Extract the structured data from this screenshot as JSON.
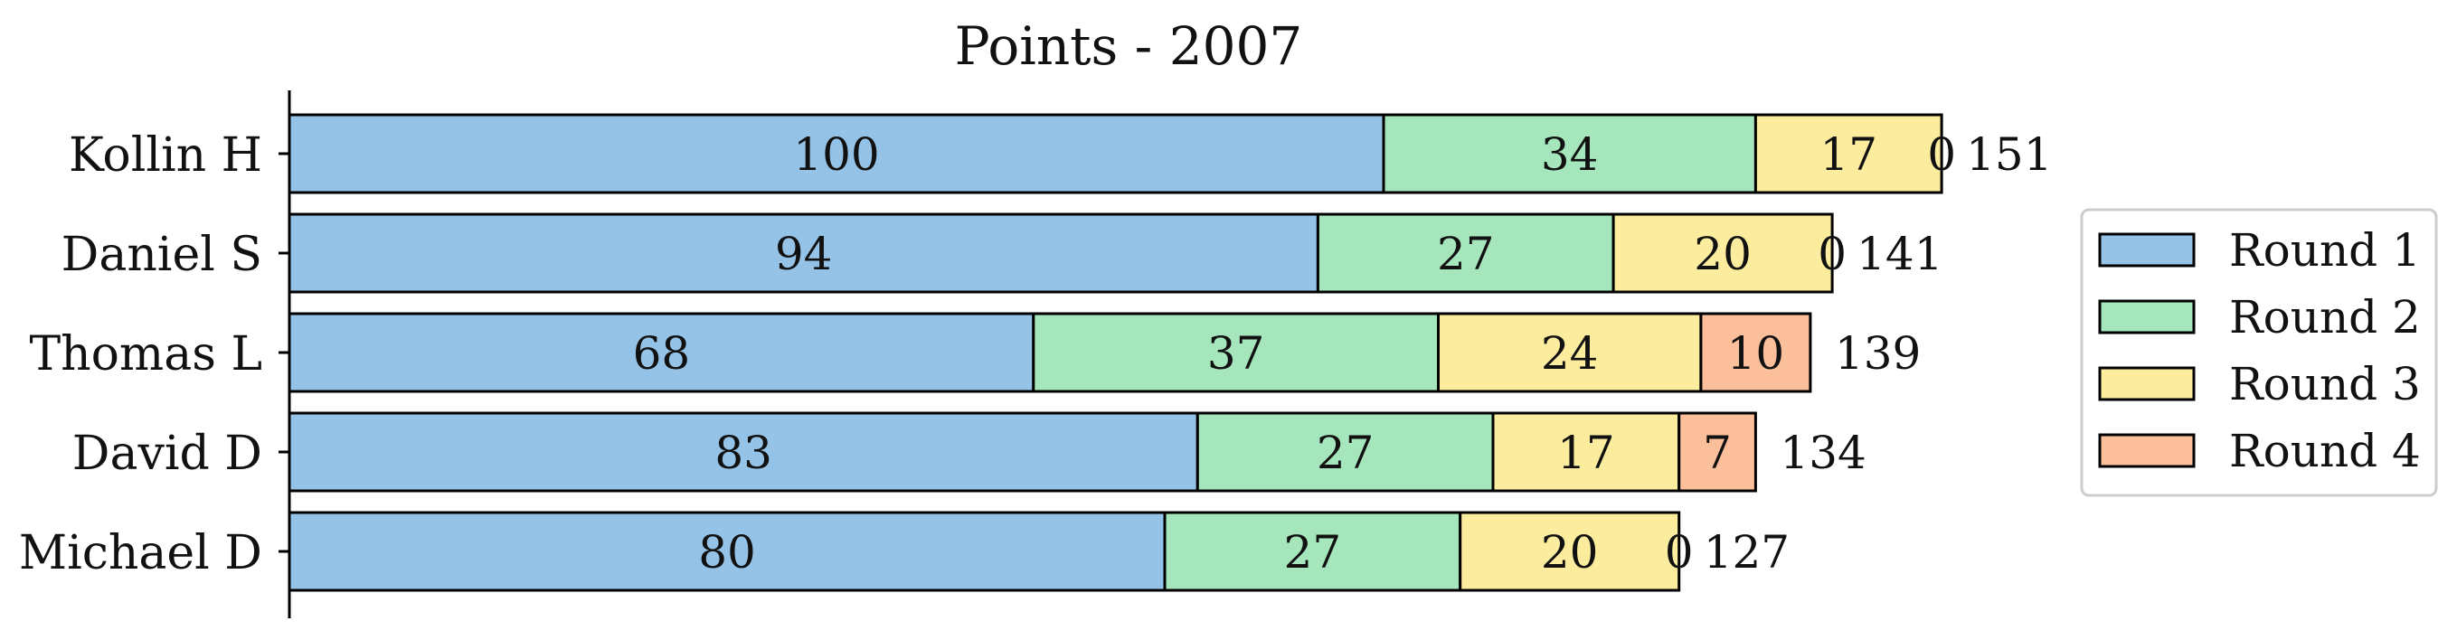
{
  "chart_data": {
    "type": "bar",
    "orientation": "horizontal",
    "stacked": true,
    "title": "Points - 2007",
    "xlabel": "",
    "ylabel": "",
    "categories": [
      "Kollin H",
      "Daniel S",
      "Thomas L",
      "David D",
      "Michael D"
    ],
    "series": [
      {
        "name": "Round 1",
        "color": "#95c3e8",
        "values": [
          100,
          94,
          68,
          83,
          80
        ]
      },
      {
        "name": "Round 2",
        "color": "#a6e6bd",
        "values": [
          34,
          27,
          37,
          27,
          27
        ]
      },
      {
        "name": "Round 3",
        "color": "#fbec9e",
        "values": [
          17,
          20,
          24,
          17,
          20
        ]
      },
      {
        "name": "Round 4",
        "color": "#fbbf9b",
        "values": [
          0,
          0,
          10,
          7,
          0
        ]
      }
    ],
    "totals": [
      151,
      141,
      139,
      134,
      127
    ],
    "xlim": [
      0,
      151
    ],
    "x_axis_visible": false,
    "grid": false,
    "legend_position": "center-right"
  }
}
